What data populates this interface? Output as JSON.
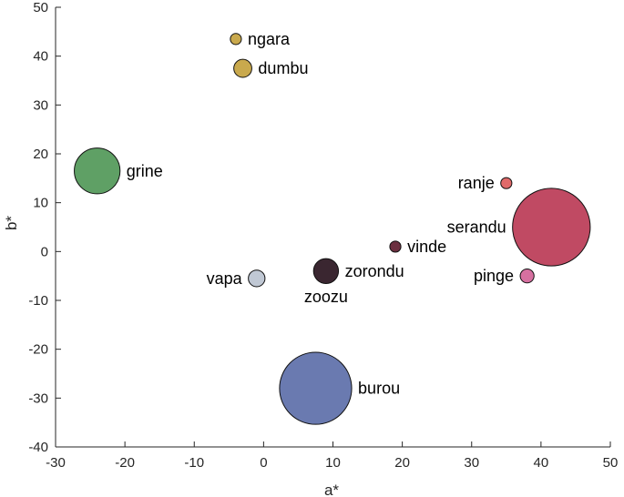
{
  "chart_data": {
    "type": "scatter",
    "xlabel": "a*",
    "ylabel": "b*",
    "xlim": [
      -30,
      50
    ],
    "ylim": [
      -40,
      50
    ],
    "xticks": [
      -30,
      -20,
      -10,
      0,
      10,
      20,
      30,
      40,
      50
    ],
    "yticks": [
      -40,
      -30,
      -20,
      -10,
      0,
      10,
      20,
      30,
      40,
      50
    ],
    "grid": false,
    "points": [
      {
        "label": "ngara",
        "x": -4,
        "y": 43.5,
        "size": 0.8,
        "color": "#c9a94d",
        "label_side": "right"
      },
      {
        "label": "dumbu",
        "x": -3,
        "y": 37.5,
        "size": 1.3,
        "color": "#c9a94d",
        "label_side": "right"
      },
      {
        "label": "grine",
        "x": -24,
        "y": 16.5,
        "size": 3.3,
        "color": "#5fa065",
        "label_side": "right"
      },
      {
        "label": "ranje",
        "x": 35,
        "y": 14,
        "size": 0.8,
        "color": "#e06a6a",
        "label_side": "left"
      },
      {
        "label": "serandu",
        "x": 41.5,
        "y": 5,
        "size": 5.6,
        "color": "#c04a63",
        "label_side": "left"
      },
      {
        "label": "vinde",
        "x": 19,
        "y": 1,
        "size": 0.8,
        "color": "#6b3040",
        "label_side": "right"
      },
      {
        "label": "pinge",
        "x": 38,
        "y": -5,
        "size": 1.0,
        "color": "#d670a0",
        "label_side": "left"
      },
      {
        "label": "vapa",
        "x": -1,
        "y": -5.5,
        "size": 1.2,
        "color": "#c0c8d4",
        "label_side": "left"
      },
      {
        "label": "zorondu",
        "x": 9,
        "y": -4,
        "size": 1.8,
        "color": "#3a2630",
        "label_side": "right"
      },
      {
        "label": "zoozu",
        "x": 9,
        "y": -4,
        "size": 0,
        "color": "#3a2630",
        "label_side": "below"
      },
      {
        "label": "burou",
        "x": 7.5,
        "y": -28,
        "size": 5.2,
        "color": "#6a7ab0",
        "label_side": "right"
      }
    ]
  }
}
